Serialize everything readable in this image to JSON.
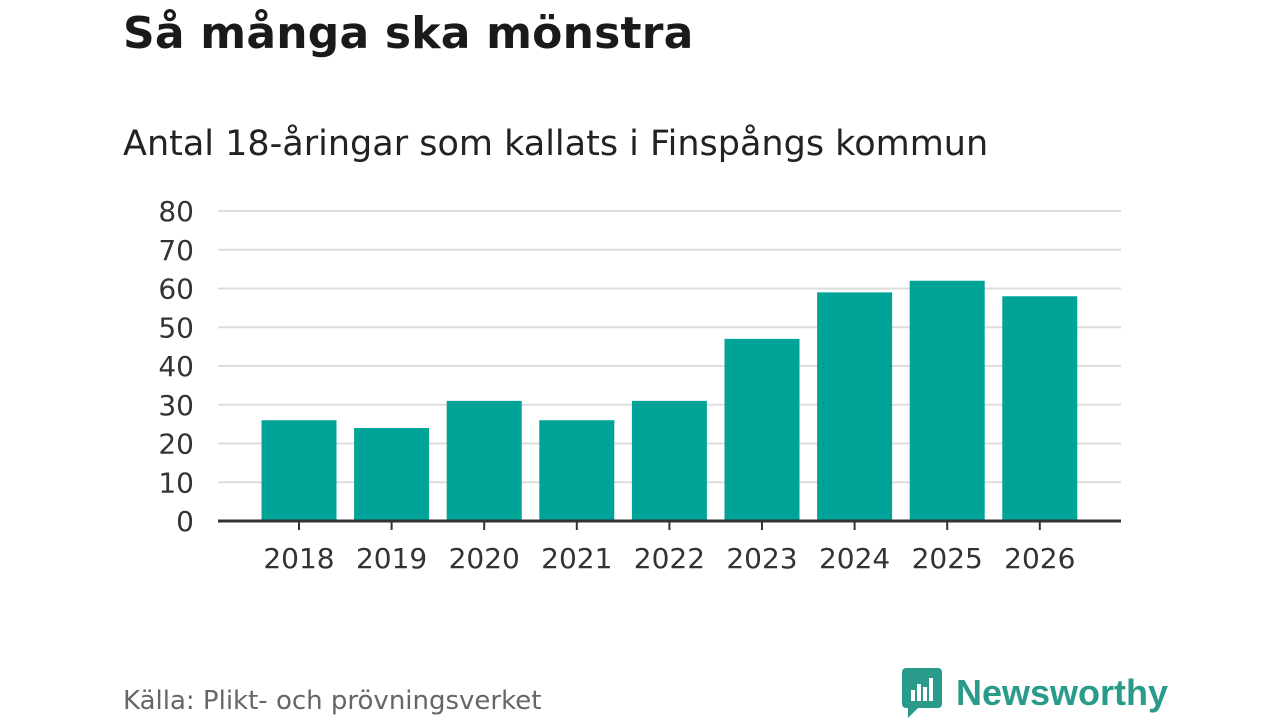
{
  "header": {
    "title": "Så många ska mönstra",
    "subtitle": "Antal 18-åringar som kallats i Finspångs kommun"
  },
  "chart_data": {
    "type": "bar",
    "title": "Så många ska mönstra",
    "subtitle": "Antal 18-åringar som kallats i Finspångs kommun",
    "categories": [
      "2018",
      "2019",
      "2020",
      "2021",
      "2022",
      "2023",
      "2024",
      "2025",
      "2026"
    ],
    "values": [
      26,
      24,
      31,
      26,
      31,
      47,
      59,
      62,
      58
    ],
    "xlabel": "",
    "ylabel": "",
    "ylim": [
      0,
      80
    ],
    "yticks": [
      0,
      10,
      20,
      30,
      40,
      50,
      60,
      70,
      80
    ],
    "grid": true,
    "bar_color": "#00a398"
  },
  "footer": {
    "source": "Källa: Plikt- och prövningsverket",
    "brand": "Newsworthy",
    "brand_icon": "newsworthy-logo-icon",
    "brand_color": "#2a9b8b"
  }
}
